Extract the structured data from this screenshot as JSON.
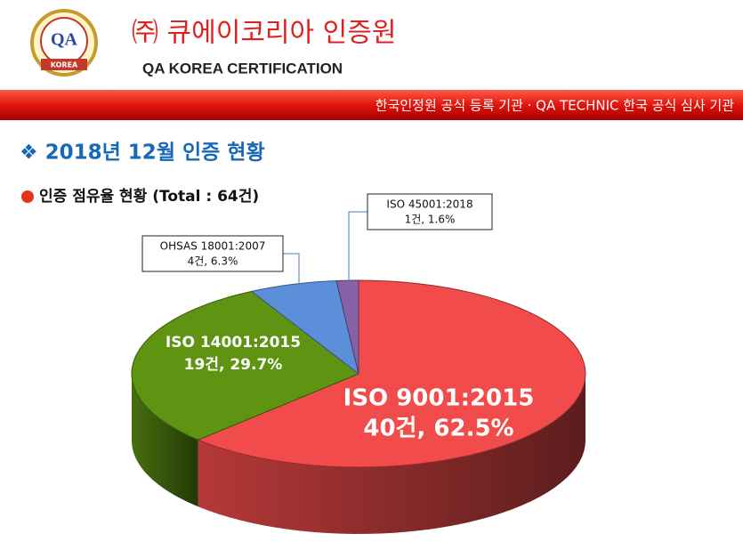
{
  "header": {
    "company": "㈜ 큐에이코리아 인증원",
    "company_en": "QA KOREA CERTIFICATION",
    "logo_text": "QA",
    "logo_sub": "KOREA",
    "banner": "한국인정원 공식 등록 기관  ·  QA TECHNIC 한국 공식 심사 기관"
  },
  "section_title": "❖ 2018년 12월 인증 현황",
  "chart_data": {
    "type": "pie",
    "title": "인증 점유율 현황 (Total : 64건)",
    "categories": [
      "ISO 9001:2015",
      "ISO 14001:2015",
      "OHSAS 18001:2007",
      "ISO 45001:2018"
    ],
    "values": [
      40,
      19,
      4,
      1
    ],
    "value_labels": [
      "40건, 62.5%",
      "19건, 29.7%",
      "4건, 6.3%",
      "1건, 1.6%"
    ],
    "colors": [
      "#f24b4b",
      "#5f9412",
      "#5b8fd9",
      "#8562a8"
    ]
  }
}
